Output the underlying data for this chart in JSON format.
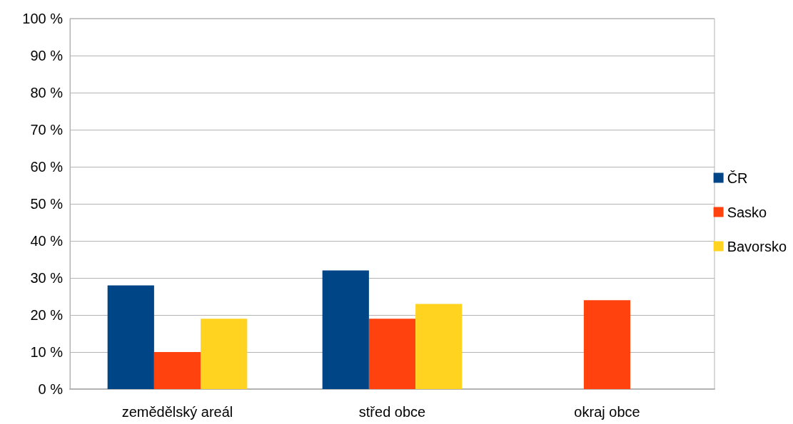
{
  "chart_data": {
    "type": "bar",
    "categories": [
      "zemědělský areál",
      "střed obce",
      "okraj obce"
    ],
    "series": [
      {
        "name": "ČR",
        "color": "#004586",
        "values": [
          28,
          32,
          0
        ]
      },
      {
        "name": "Sasko",
        "color": "#ff420e",
        "values": [
          10,
          19,
          24
        ]
      },
      {
        "name": "Bavorsko",
        "color": "#ffd320",
        "values": [
          19,
          23,
          0
        ]
      }
    ],
    "ylim": [
      0,
      100
    ],
    "yticks": [
      {
        "value": 0,
        "label": "0 %"
      },
      {
        "value": 10,
        "label": "10 %"
      },
      {
        "value": 20,
        "label": "20 %"
      },
      {
        "value": 30,
        "label": "30 %"
      },
      {
        "value": 40,
        "label": "40 %"
      },
      {
        "value": 50,
        "label": "50 %"
      },
      {
        "value": 60,
        "label": "60 %"
      },
      {
        "value": 70,
        "label": "70 %"
      },
      {
        "value": 80,
        "label": "80 %"
      },
      {
        "value": 90,
        "label": "90 %"
      },
      {
        "value": 100,
        "label": "100 %"
      }
    ],
    "grid": true,
    "legend": "right"
  }
}
